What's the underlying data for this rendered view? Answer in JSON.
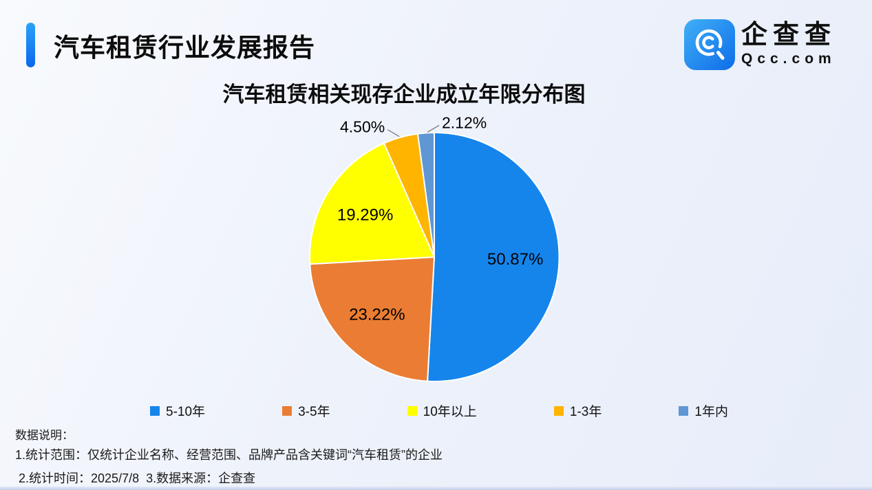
{
  "header": {
    "title": "汽车租赁行业发展报告",
    "accent_color_top": "#2ba3f7",
    "accent_color_bottom": "#0967ee",
    "logo": {
      "name": "企查查",
      "domain": "Qcc.com",
      "icon": "qcc-magnifier-icon",
      "icon_color_top": "#41b0f7",
      "icon_color_bottom": "#0d6ce8"
    }
  },
  "chart_data": {
    "type": "pie",
    "title": "汽车租赁相关现存企业成立年限分布图",
    "unit": "percent",
    "start_angle_deg": 0,
    "direction": "clockwise",
    "legend_position": "bottom",
    "slice_border_color": "#ffffff",
    "label_color": "#000000",
    "leader_line_color": "#7f7f7f",
    "slices": [
      {
        "label": "5-10年",
        "value": 50.87,
        "display": "50.87%",
        "color": "#1585ec",
        "label_placement": "inside"
      },
      {
        "label": "3-5年",
        "value": 23.22,
        "display": "23.22%",
        "color": "#ea7d33",
        "label_placement": "inside"
      },
      {
        "label": "10年以上",
        "value": 19.29,
        "display": "19.29%",
        "color": "#ffff00",
        "label_placement": "inside"
      },
      {
        "label": "1-3年",
        "value": 4.5,
        "display": "4.50%",
        "color": "#ffb400",
        "label_placement": "outside-left"
      },
      {
        "label": "1年内",
        "value": 2.12,
        "display": "2.12%",
        "color": "#5e97d3",
        "label_placement": "outside-right"
      }
    ]
  },
  "notes": {
    "heading": "数据说明：",
    "line1": "1.统计范围：仅统计企业名称、经营范围、品牌产品含关键词“汽车租赁”的企业",
    "line2": " 2.统计时间：2025/7/8  3.数据来源：企查查"
  }
}
